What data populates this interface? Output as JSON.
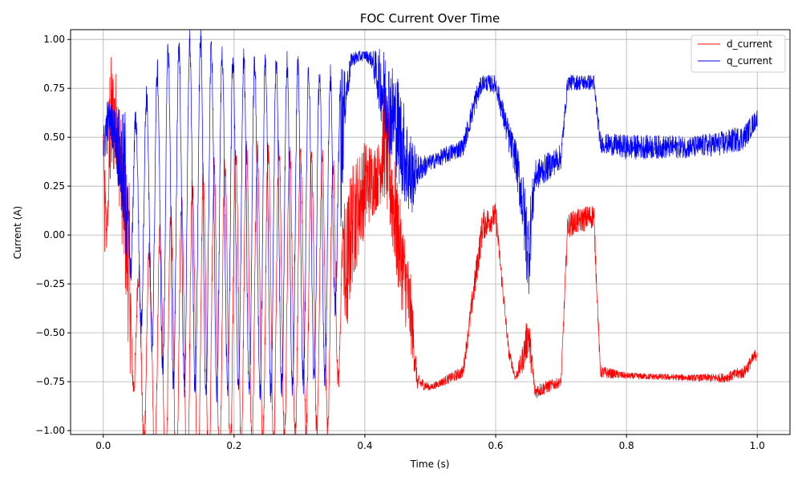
{
  "chart_data": {
    "type": "line",
    "title": "FOC Current Over Time",
    "xlabel": "Time (s)",
    "ylabel": "Current (A)",
    "xlim": [
      -0.05,
      1.05
    ],
    "ylim": [
      -1.02,
      1.05
    ],
    "xticks": [
      0.0,
      0.2,
      0.4,
      0.6,
      0.8,
      1.0
    ],
    "xtick_labels": [
      "0.0",
      "0.2",
      "0.4",
      "0.6",
      "0.8",
      "1.0"
    ],
    "yticks": [
      -1.0,
      -0.75,
      -0.5,
      -0.25,
      0.0,
      0.25,
      0.5,
      0.75,
      1.0
    ],
    "ytick_labels": [
      "−1.00",
      "−0.75",
      "−0.50",
      "−0.25",
      "0.00",
      "0.25",
      "0.50",
      "0.75",
      "1.00"
    ],
    "grid": true,
    "legend_position": "top-right",
    "series": [
      {
        "name": "d_current",
        "color": "#ff0000",
        "x": [
          0.0,
          0.005,
          0.01,
          0.02,
          0.03,
          0.05,
          0.1,
          0.15,
          0.2,
          0.25,
          0.3,
          0.35,
          0.37,
          0.38,
          0.4,
          0.42,
          0.43,
          0.45,
          0.47,
          0.48,
          0.5,
          0.55,
          0.57,
          0.58,
          0.6,
          0.62,
          0.63,
          0.64,
          0.65,
          0.66,
          0.7,
          0.71,
          0.75,
          0.76,
          0.8,
          0.9,
          0.95,
          0.98,
          1.0
        ],
        "values": [
          0.5,
          -0.45,
          0.55,
          0.6,
          0.2,
          -0.6,
          -0.6,
          -0.5,
          -0.35,
          -0.3,
          -0.3,
          -0.3,
          -0.25,
          0.05,
          0.25,
          0.3,
          0.5,
          0.0,
          -0.4,
          -0.75,
          -0.78,
          -0.7,
          -0.2,
          0.05,
          0.1,
          -0.6,
          -0.73,
          -0.65,
          -0.5,
          -0.8,
          -0.75,
          0.05,
          0.1,
          -0.7,
          -0.72,
          -0.73,
          -0.73,
          -0.7,
          -0.6
        ],
        "band": [
          0.05,
          0.9,
          0.5,
          0.3,
          0.4,
          0.75,
          1.4,
          1.6,
          1.5,
          1.5,
          1.4,
          1.4,
          0.5,
          0.4,
          0.3,
          0.2,
          0.4,
          0.35,
          0.25,
          0.05,
          0.02,
          0.04,
          0.1,
          0.1,
          0.08,
          0.04,
          0.02,
          0.08,
          0.15,
          0.05,
          0.03,
          0.08,
          0.08,
          0.04,
          0.02,
          0.02,
          0.03,
          0.04,
          0.04
        ]
      },
      {
        "name": "q_current",
        "color": "#0000ff",
        "x": [
          0.0,
          0.005,
          0.01,
          0.02,
          0.03,
          0.05,
          0.1,
          0.15,
          0.2,
          0.25,
          0.3,
          0.35,
          0.37,
          0.38,
          0.4,
          0.41,
          0.43,
          0.45,
          0.47,
          0.48,
          0.5,
          0.55,
          0.57,
          0.58,
          0.6,
          0.62,
          0.63,
          0.64,
          0.65,
          0.66,
          0.7,
          0.71,
          0.75,
          0.76,
          0.8,
          0.9,
          0.95,
          0.98,
          1.0
        ],
        "values": [
          0.45,
          0.55,
          0.6,
          0.5,
          0.3,
          0.1,
          0.1,
          0.1,
          0.05,
          0.05,
          0.05,
          0.05,
          0.7,
          0.9,
          0.92,
          0.9,
          0.72,
          0.55,
          0.3,
          0.33,
          0.37,
          0.45,
          0.7,
          0.78,
          0.77,
          0.5,
          0.4,
          0.2,
          -0.1,
          0.3,
          0.4,
          0.78,
          0.78,
          0.47,
          0.45,
          0.45,
          0.47,
          0.5,
          0.6
        ],
        "band": [
          0.1,
          0.2,
          0.1,
          0.2,
          0.4,
          1.0,
          1.7,
          1.8,
          1.7,
          1.7,
          1.6,
          1.5,
          0.15,
          0.05,
          0.03,
          0.05,
          0.3,
          0.35,
          0.3,
          0.1,
          0.05,
          0.06,
          0.08,
          0.05,
          0.06,
          0.1,
          0.12,
          0.2,
          0.3,
          0.1,
          0.08,
          0.05,
          0.05,
          0.06,
          0.08,
          0.07,
          0.08,
          0.08,
          0.06
        ]
      }
    ]
  }
}
